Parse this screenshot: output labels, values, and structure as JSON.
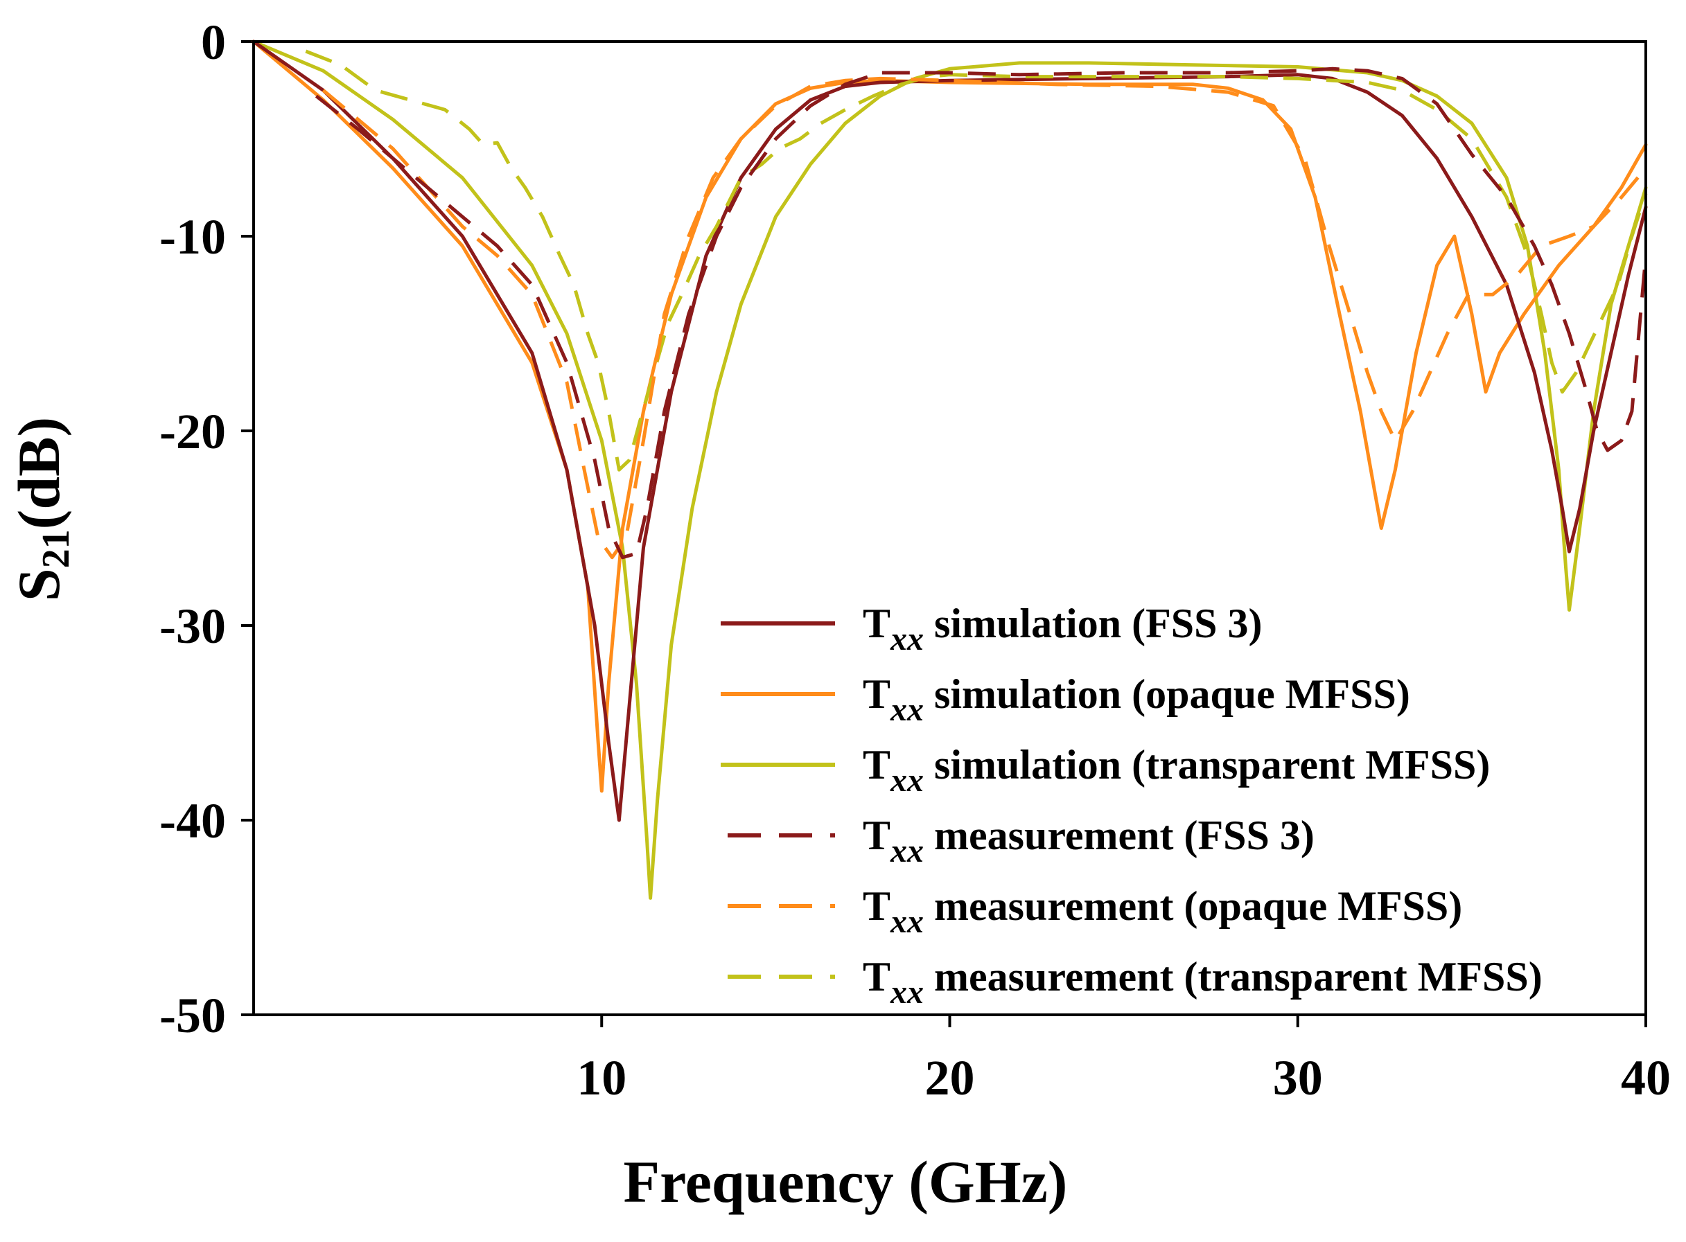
{
  "chart_data": {
    "type": "line",
    "title": "",
    "xlabel": "Frequency (GHz)",
    "ylabel": {
      "base": "S",
      "sub": "21",
      "unit": "(dB)"
    },
    "xlim": [
      0,
      40
    ],
    "ylim": [
      -50,
      0
    ],
    "xticks": [
      10,
      20,
      30,
      40
    ],
    "xtick_labels": [
      "10",
      "20",
      "30",
      "40"
    ],
    "yticks": [
      0,
      -10,
      -20,
      -30,
      -40,
      -50
    ],
    "ytick_labels": [
      "0",
      "-10",
      "-20",
      "-30",
      "-40",
      "-50"
    ],
    "grid": false,
    "legend_position": "bottom-right",
    "series": [
      {
        "name": "Txx simulation (FSS 3)",
        "legend": {
          "base": "T",
          "sub": "xx",
          "label": " simulation (FSS 3)"
        },
        "color": "#8B1A1A",
        "dash": "solid",
        "points": [
          [
            0,
            0
          ],
          [
            2,
            -2.5
          ],
          [
            4,
            -6
          ],
          [
            6,
            -10
          ],
          [
            8,
            -16
          ],
          [
            9,
            -22
          ],
          [
            9.8,
            -30
          ],
          [
            10.2,
            -36
          ],
          [
            10.5,
            -40
          ],
          [
            10.8,
            -34
          ],
          [
            11.2,
            -26
          ],
          [
            12,
            -18
          ],
          [
            13,
            -11
          ],
          [
            14,
            -7
          ],
          [
            15,
            -4.5
          ],
          [
            16,
            -3
          ],
          [
            17,
            -2.3
          ],
          [
            18,
            -2.1
          ],
          [
            20,
            -2
          ],
          [
            24,
            -1.9
          ],
          [
            28,
            -1.8
          ],
          [
            30,
            -1.7
          ],
          [
            31,
            -1.9
          ],
          [
            32,
            -2.6
          ],
          [
            33,
            -3.8
          ],
          [
            34,
            -6
          ],
          [
            35,
            -9
          ],
          [
            36,
            -12.5
          ],
          [
            36.8,
            -17
          ],
          [
            37.3,
            -21
          ],
          [
            37.6,
            -24
          ],
          [
            37.8,
            -26.2
          ],
          [
            38.1,
            -24
          ],
          [
            38.5,
            -20
          ],
          [
            39,
            -16
          ],
          [
            39.5,
            -12
          ],
          [
            40,
            -8.5
          ]
        ]
      },
      {
        "name": "Txx simulation (opaque MFSS)",
        "legend": {
          "base": "T",
          "sub": "xx",
          "label": " simulation (opaque MFSS)"
        },
        "color": "#FF8C1A",
        "dash": "solid",
        "points": [
          [
            0,
            0
          ],
          [
            2,
            -3
          ],
          [
            4,
            -6.5
          ],
          [
            6,
            -10.5
          ],
          [
            8,
            -16.5
          ],
          [
            9,
            -22
          ],
          [
            9.6,
            -28
          ],
          [
            9.9,
            -36
          ],
          [
            10,
            -38.5
          ],
          [
            10.2,
            -33
          ],
          [
            10.6,
            -25
          ],
          [
            11.2,
            -19
          ],
          [
            12,
            -13
          ],
          [
            13,
            -8
          ],
          [
            14,
            -5
          ],
          [
            15,
            -3.2
          ],
          [
            16,
            -2.4
          ],
          [
            17,
            -2.1
          ],
          [
            18,
            -2
          ],
          [
            20,
            -2.1
          ],
          [
            24,
            -2.2
          ],
          [
            27,
            -2.2
          ],
          [
            28,
            -2.4
          ],
          [
            29,
            -3
          ],
          [
            29.8,
            -4.5
          ],
          [
            30.5,
            -8
          ],
          [
            31.2,
            -14
          ],
          [
            31.8,
            -19
          ],
          [
            32.2,
            -23
          ],
          [
            32.4,
            -25
          ],
          [
            32.8,
            -22
          ],
          [
            33.4,
            -16
          ],
          [
            34,
            -11.5
          ],
          [
            34.5,
            -10
          ],
          [
            35,
            -14
          ],
          [
            35.4,
            -18
          ],
          [
            35.8,
            -16
          ],
          [
            36.5,
            -14
          ],
          [
            37.5,
            -11.5
          ],
          [
            38.5,
            -9.5
          ],
          [
            39.3,
            -7.5
          ],
          [
            40,
            -5.3
          ]
        ]
      },
      {
        "name": "Txx simulation (transparent MFSS)",
        "legend": {
          "base": "T",
          "sub": "xx",
          "label": " simulation (transparent MFSS)"
        },
        "color": "#C2C21A",
        "dash": "solid",
        "points": [
          [
            0,
            0
          ],
          [
            2,
            -1.5
          ],
          [
            4,
            -4
          ],
          [
            6,
            -7
          ],
          [
            8,
            -11.5
          ],
          [
            9,
            -15
          ],
          [
            10,
            -20.5
          ],
          [
            10.6,
            -26
          ],
          [
            11,
            -33
          ],
          [
            11.3,
            -41
          ],
          [
            11.4,
            -44
          ],
          [
            11.6,
            -39
          ],
          [
            12,
            -31
          ],
          [
            12.6,
            -24
          ],
          [
            13.3,
            -18
          ],
          [
            14,
            -13.5
          ],
          [
            15,
            -9
          ],
          [
            16,
            -6.3
          ],
          [
            17,
            -4.2
          ],
          [
            18,
            -2.8
          ],
          [
            19,
            -1.9
          ],
          [
            20,
            -1.4
          ],
          [
            22,
            -1.1
          ],
          [
            24,
            -1.1
          ],
          [
            27,
            -1.2
          ],
          [
            30,
            -1.3
          ],
          [
            32,
            -1.6
          ],
          [
            33,
            -2
          ],
          [
            34,
            -2.8
          ],
          [
            35,
            -4.2
          ],
          [
            36,
            -7
          ],
          [
            36.6,
            -10.5
          ],
          [
            37.1,
            -16
          ],
          [
            37.5,
            -22
          ],
          [
            37.7,
            -27
          ],
          [
            37.8,
            -29.2
          ],
          [
            38.1,
            -25
          ],
          [
            38.5,
            -19
          ],
          [
            39,
            -13.5
          ],
          [
            39.5,
            -10.5
          ],
          [
            40,
            -7.5
          ]
        ]
      },
      {
        "name": "Txx measurement (FSS 3)",
        "legend": {
          "base": "T",
          "sub": "xx",
          "label": " measurement (FSS 3)"
        },
        "color": "#8B1A1A",
        "dash": "dashed",
        "points": [
          [
            1.8,
            -2.8
          ],
          [
            3,
            -4.5
          ],
          [
            4,
            -6
          ],
          [
            5,
            -7.5
          ],
          [
            6,
            -9
          ],
          [
            7,
            -10.5
          ],
          [
            8,
            -12.5
          ],
          [
            9,
            -16.5
          ],
          [
            9.8,
            -21.5
          ],
          [
            10.2,
            -25
          ],
          [
            10.6,
            -26.5
          ],
          [
            11,
            -26.3
          ],
          [
            11.3,
            -24
          ],
          [
            11.8,
            -19
          ],
          [
            12.5,
            -14
          ],
          [
            13.3,
            -10
          ],
          [
            14,
            -7.5
          ],
          [
            15,
            -5
          ],
          [
            16,
            -3.3
          ],
          [
            17,
            -2.2
          ],
          [
            18,
            -1.6
          ],
          [
            19,
            -1.6
          ],
          [
            20,
            -1.6
          ],
          [
            22,
            -1.7
          ],
          [
            25,
            -1.6
          ],
          [
            28,
            -1.6
          ],
          [
            30,
            -1.5
          ],
          [
            31,
            -1.4
          ],
          [
            32,
            -1.5
          ],
          [
            33,
            -1.9
          ],
          [
            34,
            -3.2
          ],
          [
            35,
            -5.8
          ],
          [
            36,
            -8
          ],
          [
            36.8,
            -10.5
          ],
          [
            37.3,
            -12.5
          ],
          [
            37.8,
            -15
          ],
          [
            38.3,
            -18
          ],
          [
            38.6,
            -20
          ],
          [
            38.9,
            -21
          ],
          [
            39.3,
            -20.5
          ],
          [
            39.6,
            -19
          ],
          [
            40,
            -11
          ]
        ]
      },
      {
        "name": "Txx measurement (opaque MFSS)",
        "legend": {
          "base": "T",
          "sub": "xx",
          "label": " measurement (opaque MFSS)"
        },
        "color": "#FF8C1A",
        "dash": "dashed",
        "points": [
          [
            2,
            -2.5
          ],
          [
            3,
            -4
          ],
          [
            4,
            -5.5
          ],
          [
            5,
            -7.5
          ],
          [
            6,
            -9.5
          ],
          [
            7,
            -11
          ],
          [
            8,
            -13
          ],
          [
            9,
            -17.5
          ],
          [
            9.5,
            -22
          ],
          [
            9.9,
            -25.5
          ],
          [
            10.3,
            -26.5
          ],
          [
            10.7,
            -25.5
          ],
          [
            11.2,
            -20.5
          ],
          [
            11.8,
            -14
          ],
          [
            12.5,
            -10
          ],
          [
            13.2,
            -7
          ],
          [
            14,
            -5
          ],
          [
            15,
            -3.3
          ],
          [
            16,
            -2.3
          ],
          [
            17,
            -2
          ],
          [
            18,
            -1.9
          ],
          [
            20,
            -2
          ],
          [
            23,
            -2.2
          ],
          [
            26,
            -2.3
          ],
          [
            28,
            -2.6
          ],
          [
            29.3,
            -3.3
          ],
          [
            30.2,
            -6
          ],
          [
            30.9,
            -10.5
          ],
          [
            31.5,
            -14
          ],
          [
            32,
            -17
          ],
          [
            32.4,
            -19
          ],
          [
            32.8,
            -20.5
          ],
          [
            33.3,
            -19
          ],
          [
            33.8,
            -17
          ],
          [
            34.3,
            -15
          ],
          [
            34.9,
            -13
          ],
          [
            35.6,
            -13
          ],
          [
            36.3,
            -12
          ],
          [
            37,
            -10.5
          ],
          [
            37.8,
            -10
          ],
          [
            38.5,
            -9.5
          ],
          [
            39.3,
            -8
          ],
          [
            40,
            -6.5
          ]
        ]
      },
      {
        "name": "Txx measurement (transparent MFSS)",
        "legend": {
          "base": "T",
          "sub": "xx",
          "label": " measurement (transparent MFSS)"
        },
        "color": "#C2C21A",
        "dash": "dashed",
        "points": [
          [
            1.5,
            -0.5
          ],
          [
            2.5,
            -1.2
          ],
          [
            3.5,
            -2.5
          ],
          [
            4.5,
            -3
          ],
          [
            5.5,
            -3.5
          ],
          [
            6.2,
            -4.5
          ],
          [
            6.6,
            -5.3
          ],
          [
            7,
            -5.2
          ],
          [
            7.4,
            -6.5
          ],
          [
            7.8,
            -7.5
          ],
          [
            8.3,
            -9
          ],
          [
            8.8,
            -11
          ],
          [
            9.2,
            -12.5
          ],
          [
            9.6,
            -15
          ],
          [
            9.9,
            -16.5
          ],
          [
            10.2,
            -19
          ],
          [
            10.5,
            -22
          ],
          [
            10.8,
            -21.5
          ],
          [
            11.1,
            -19.5
          ],
          [
            11.5,
            -17
          ],
          [
            11.9,
            -14.5
          ],
          [
            12.3,
            -13
          ],
          [
            12.8,
            -11
          ],
          [
            13.3,
            -9.5
          ],
          [
            14,
            -7
          ],
          [
            14.6,
            -6.3
          ],
          [
            15.1,
            -5.5
          ],
          [
            15.7,
            -5
          ],
          [
            16.3,
            -4.2
          ],
          [
            17,
            -3.5
          ],
          [
            17.8,
            -2.8
          ],
          [
            18.6,
            -2.2
          ],
          [
            19.4,
            -1.8
          ],
          [
            20,
            -1.7
          ],
          [
            22,
            -1.8
          ],
          [
            25,
            -1.8
          ],
          [
            28,
            -1.8
          ],
          [
            30,
            -1.9
          ],
          [
            31,
            -2
          ],
          [
            32,
            -2.1
          ],
          [
            33,
            -2.5
          ],
          [
            34,
            -3.5
          ],
          [
            35,
            -5
          ],
          [
            36,
            -8
          ],
          [
            36.6,
            -11
          ],
          [
            37,
            -14
          ],
          [
            37.3,
            -16.5
          ],
          [
            37.6,
            -18
          ],
          [
            38,
            -17
          ],
          [
            38.4,
            -15.5
          ],
          [
            38.8,
            -14
          ],
          [
            39.2,
            -12.5
          ],
          [
            39.6,
            -10
          ],
          [
            40,
            -7.8
          ]
        ]
      }
    ]
  }
}
